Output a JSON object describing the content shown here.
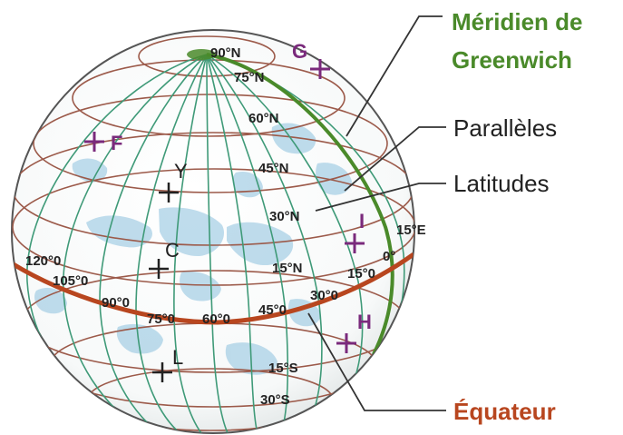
{
  "callouts": {
    "greenwich_line1": "Méridien de",
    "greenwich_line2": "Greenwich",
    "paralleles": "Parallèles",
    "latitudes": "Latitudes",
    "equateur": "Équateur"
  },
  "latitude_labels": {
    "n90": "90°N",
    "n75": "75°N",
    "n60": "60°N",
    "n45": "45°N",
    "n30": "30°N",
    "n15": "15°N",
    "s15": "15°S",
    "s30": "30°S"
  },
  "longitude_labels": {
    "w120": "120°0",
    "w105": "105°0",
    "w90": "90°0",
    "w75": "75°0",
    "w60": "60°0",
    "w45": "45°0",
    "w30": "30°0",
    "w15": "15°0",
    "zero": "0°",
    "e15": "15°E"
  },
  "points": {
    "g": "G",
    "f": "F",
    "y": "Y",
    "c": "C",
    "l": "L",
    "i": "I",
    "h": "H"
  },
  "colors": {
    "meridian": "#3f9a78",
    "greenwich": "#4a8a2a",
    "parallel": "#9c5a4a",
    "equator": "#b8461f",
    "point_magenta": "#7a2a7c",
    "land": "#8cc1de"
  }
}
